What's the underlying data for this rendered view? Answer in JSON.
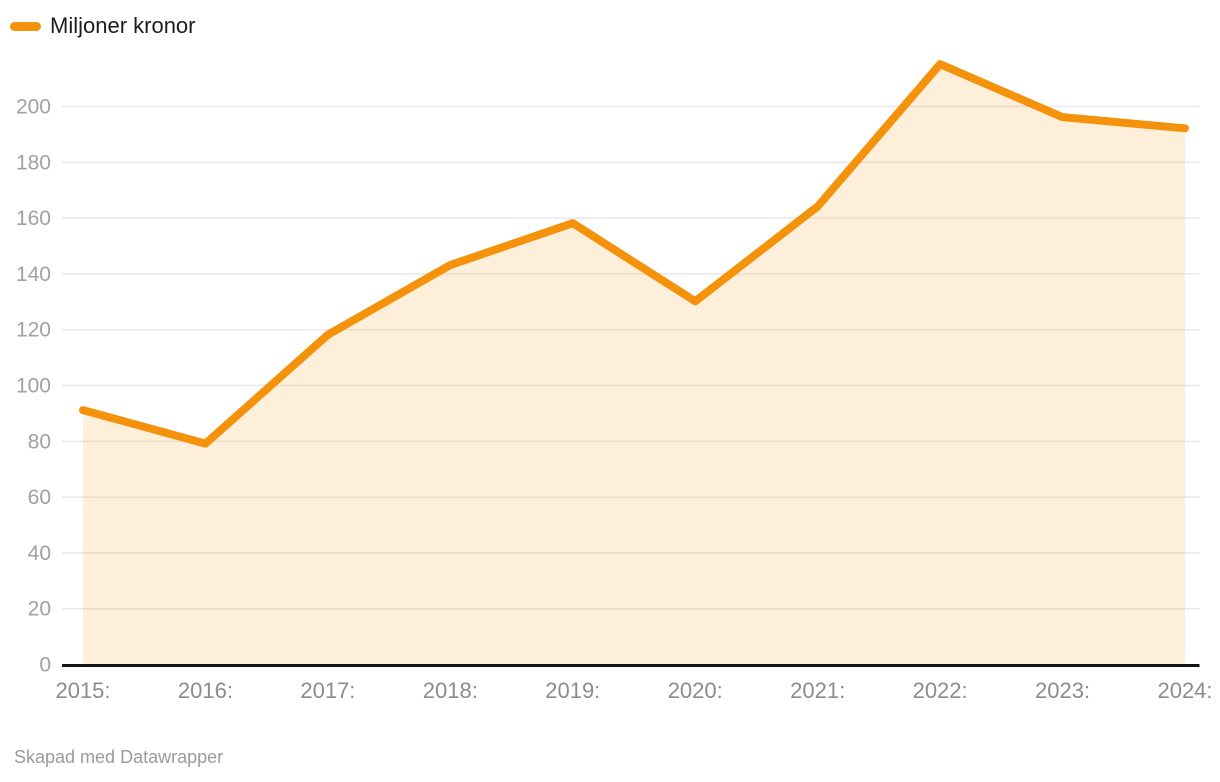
{
  "legend": {
    "label": "Miljoner kronor"
  },
  "footer": {
    "credit": "Skapad med Datawrapper"
  },
  "colors": {
    "line": "#F5920B",
    "area_fill": "rgba(245,146,11,0.15)",
    "grid": "#E8E8E8",
    "axis": "#151515",
    "y_tick_text": "#A1A1A1",
    "x_tick_text": "#8C8C8C",
    "legend_text": "#1D1D1D",
    "credit_text": "#9B9B9B"
  },
  "chart_data": {
    "type": "area",
    "title": "",
    "categories": [
      "2015:",
      "2016:",
      "2017:",
      "2018:",
      "2019:",
      "2020:",
      "2021:",
      "2022:",
      "2023:",
      "2024:"
    ],
    "series": [
      {
        "name": "Miljoner kronor",
        "values": [
          91,
          79,
          118,
          143,
          158,
          130,
          164,
          215,
          196,
          192
        ]
      }
    ],
    "xlabel": "",
    "ylabel": "",
    "ylim": [
      0,
      220
    ],
    "yticks": [
      0,
      20,
      40,
      60,
      80,
      100,
      120,
      140,
      160,
      180,
      200
    ],
    "grid": "horizontal",
    "legend_position": "top-left"
  }
}
